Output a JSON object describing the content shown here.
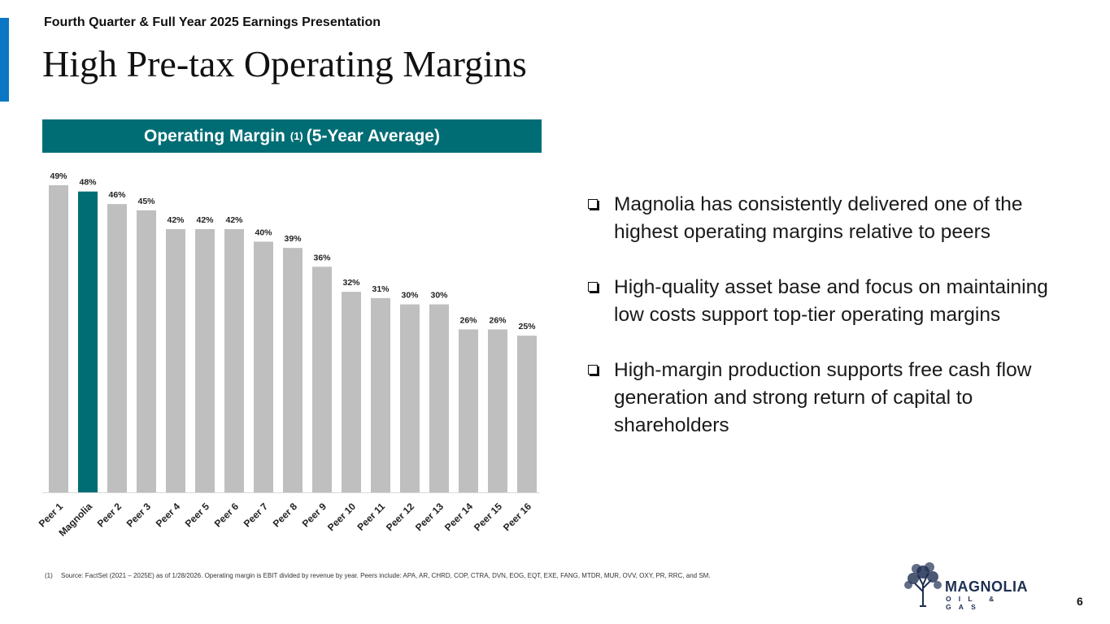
{
  "header": {
    "subtitle": "Fourth Quarter & Full Year 2025 Earnings Presentation",
    "title": "High Pre-tax Operating Margins"
  },
  "chart_header": {
    "label": "Operating Margin",
    "superscript": "(1)",
    "suffix": "(5-Year Average)"
  },
  "chart_data": {
    "type": "bar",
    "title": "Operating Margin (1) (5-Year Average)",
    "categories": [
      "Peer 1",
      "Magnolia",
      "Peer 2",
      "Peer 3",
      "Peer 4",
      "Peer 5",
      "Peer 6",
      "Peer 7",
      "Peer 8",
      "Peer 9",
      "Peer 10",
      "Peer 11",
      "Peer 12",
      "Peer 13",
      "Peer 14",
      "Peer 15",
      "Peer 16"
    ],
    "values": [
      49,
      48,
      46,
      45,
      42,
      42,
      42,
      40,
      39,
      36,
      32,
      31,
      30,
      30,
      26,
      26,
      25
    ],
    "labels": [
      "49%",
      "48%",
      "46%",
      "45%",
      "42%",
      "42%",
      "42%",
      "40%",
      "39%",
      "36%",
      "32%",
      "31%",
      "30%",
      "30%",
      "26%",
      "26%",
      "25%"
    ],
    "highlight": "Magnolia",
    "xlabel": "",
    "ylabel": "",
    "ylim": [
      0,
      49
    ],
    "grid": false,
    "colors": {
      "default": "#bfbfbf",
      "highlight": "#006d75"
    }
  },
  "bullets": [
    "Magnolia has consistently delivered one of the highest operating margins relative to peers",
    "High-quality asset base and focus on maintaining low costs support top-tier operating margins",
    "High-margin production supports free cash flow generation and strong return of capital to shareholders"
  ],
  "footnote": {
    "marker": "(1)",
    "text": "Source: FactSet (2021 – 2025E) as of 1/28/2026.  Operating margin is EBIT divided by revenue by year.  Peers include: APA, AR, CHRD, COP, CTRA, DVN, EOG, EQT, EXE, FANG, MTDR, MUR, OVV, OXY, PR, RRC, and SM."
  },
  "logo": {
    "name": "MAGNOLIA",
    "subtitle": "OIL & GAS",
    "icon": "tree-icon"
  },
  "page_number": "6",
  "colors": {
    "accent_blue": "#0a76c4",
    "teal": "#006d75",
    "bar_gray": "#bfbfbf",
    "logo_navy": "#1f2f52"
  }
}
